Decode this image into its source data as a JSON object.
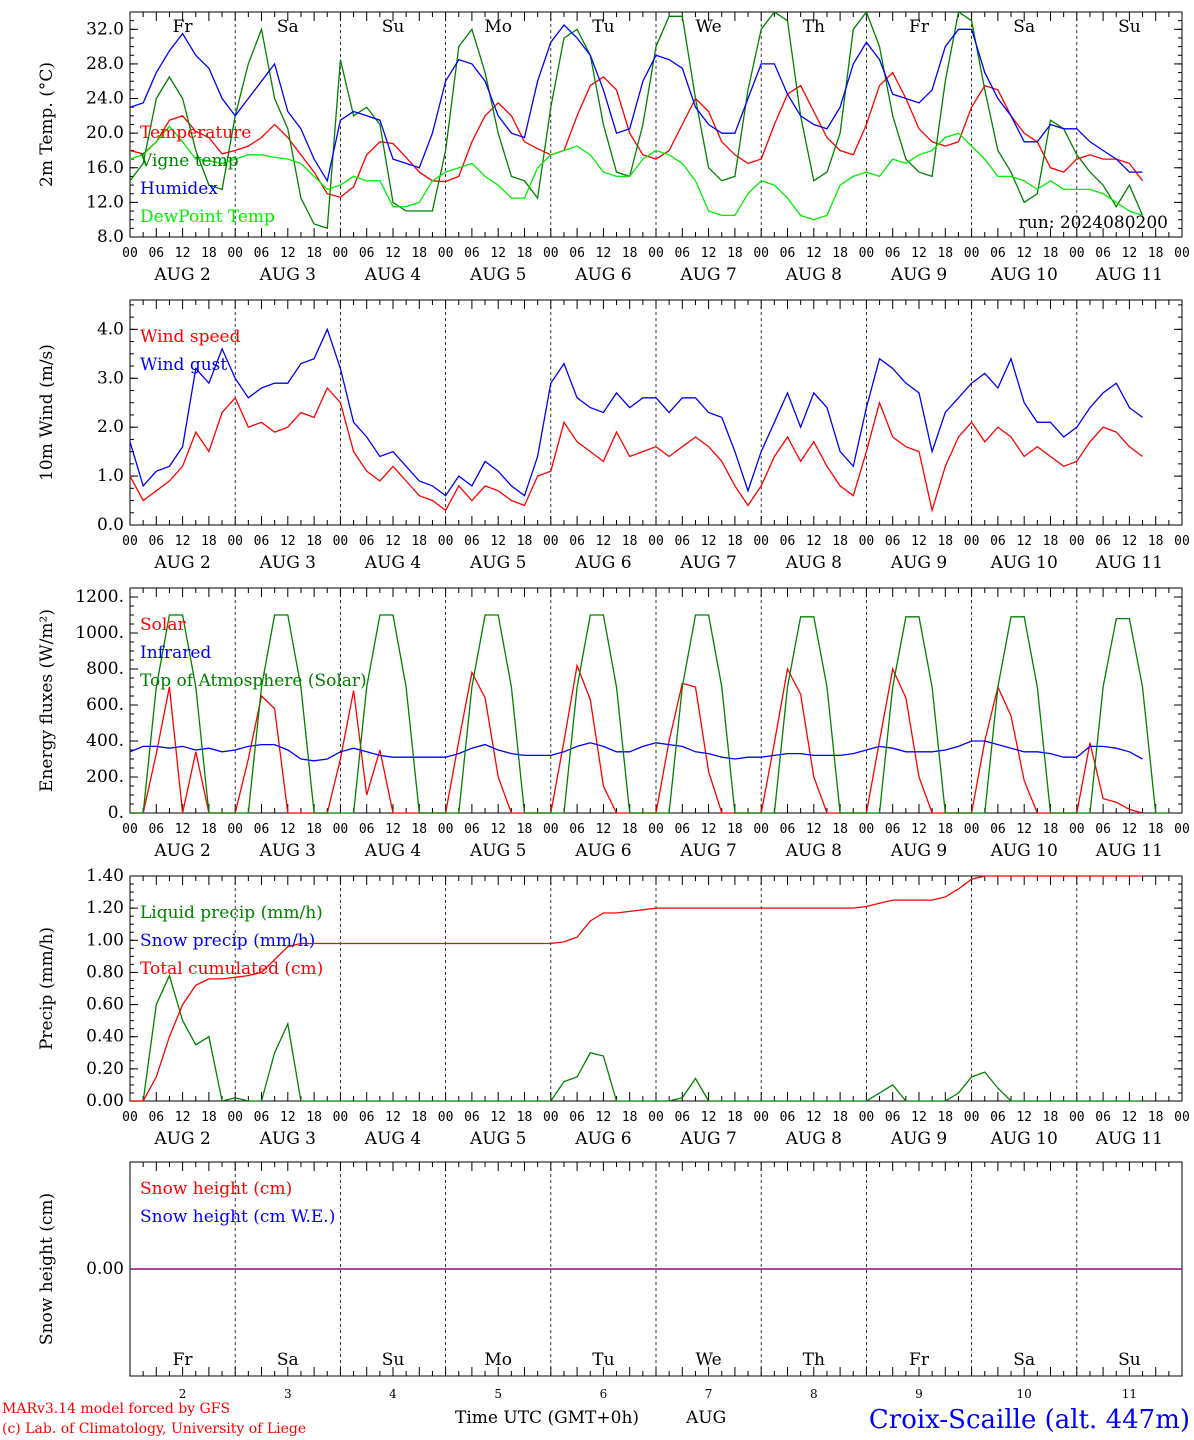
{
  "run_label": "run: 2024080200",
  "footer": {
    "credit_line1": "MARv3.14 model forced by GFS",
    "credit_line2": "(c) Lab. of Climatology, University of Liege",
    "xaxis_title": "Time UTC (GMT+0h)",
    "month_label": "AUG",
    "station": "Croix-Scaille (alt. 447m)"
  },
  "colors": {
    "red": "#ff0000",
    "green": "#008000",
    "blue": "#0000ff",
    "lightgreen": "#00ee00",
    "purple": "#800080",
    "weekend": "#ff0000"
  },
  "days": [
    {
      "abbr": "Fr",
      "date": "AUG  2",
      "num": "2",
      "weekend": false
    },
    {
      "abbr": "Sa",
      "date": "AUG  3",
      "num": "3",
      "weekend": true
    },
    {
      "abbr": "Su",
      "date": "AUG  4",
      "num": "4",
      "weekend": true
    },
    {
      "abbr": "Mo",
      "date": "AUG  5",
      "num": "5",
      "weekend": false
    },
    {
      "abbr": "Tu",
      "date": "AUG  6",
      "num": "6",
      "weekend": false
    },
    {
      "abbr": "We",
      "date": "AUG  7",
      "num": "7",
      "weekend": false
    },
    {
      "abbr": "Th",
      "date": "AUG  8",
      "num": "8",
      "weekend": false
    },
    {
      "abbr": "Fr",
      "date": "AUG  9",
      "num": "9",
      "weekend": false
    },
    {
      "abbr": "Sa",
      "date": "AUG 10",
      "num": "10",
      "weekend": true
    },
    {
      "abbr": "Su",
      "date": "AUG 11",
      "num": "11",
      "weekend": true
    }
  ],
  "hour_ticks": [
    "00",
    "06",
    "12",
    "18"
  ],
  "chart_data": [
    {
      "type": "line",
      "ylabel": "2m Temp. (°C)",
      "ylim": [
        8,
        34
      ],
      "yticks": [
        8,
        12,
        16,
        20,
        24,
        28,
        32
      ],
      "ytick_labels": [
        "8.0",
        "12.0",
        "16.0",
        "20.0",
        "24.0",
        "28.0",
        "32.0"
      ],
      "x_hours_step": 3,
      "series": [
        {
          "name": "Temperature",
          "color": "#ff0000",
          "values": [
            18,
            17.6,
            19,
            21.5,
            22,
            20.2,
            19.5,
            17.6,
            18,
            18.5,
            19.5,
            21,
            19.5,
            17.5,
            15.5,
            13,
            12.6,
            13.8,
            17.5,
            19,
            18.8,
            17.2,
            15.5,
            14.5,
            14.4,
            15,
            19,
            22,
            23.5,
            22,
            19,
            18.2,
            17.5,
            18,
            22,
            25.5,
            26.5,
            25,
            20,
            17.5,
            17,
            18,
            21,
            24,
            22.5,
            19,
            17.5,
            16.5,
            17,
            21,
            24.5,
            25.5,
            22.5,
            19.5,
            18,
            17.5,
            21,
            25.5,
            27,
            24,
            20.5,
            19,
            18.5,
            19,
            23,
            25.5,
            25,
            22,
            20,
            19,
            16,
            15.5,
            17,
            17.5,
            17,
            17,
            16.5,
            14.5
          ]
        },
        {
          "name": "Vigne temp",
          "color": "#008000",
          "values": [
            14.5,
            16.5,
            24,
            26.5,
            24,
            18,
            14,
            13.5,
            22,
            28,
            32,
            24,
            20.5,
            12.5,
            9.5,
            9,
            28.5,
            22,
            23,
            21,
            12,
            11,
            11,
            11,
            18,
            30,
            32,
            27,
            20,
            15,
            14.5,
            12.5,
            23,
            31,
            32,
            29,
            21,
            15.5,
            15,
            21,
            30,
            33.5,
            33.5,
            24,
            16,
            14.5,
            15,
            25,
            32,
            34,
            33,
            22,
            14.5,
            15.5,
            20,
            32,
            34,
            30,
            22,
            17,
            15.5,
            15,
            26,
            34,
            33,
            25,
            18,
            15.5,
            12,
            13,
            21.5,
            20.5,
            17.5,
            15.5,
            14,
            11.5,
            14,
            10.5
          ]
        },
        {
          "name": "Humidex",
          "color": "#0000ff",
          "values": [
            23,
            23.5,
            27,
            29.5,
            31.5,
            29,
            27.5,
            24,
            22,
            24,
            26,
            28,
            22.5,
            20.5,
            17,
            14.5,
            21.5,
            22.5,
            22,
            21.5,
            17,
            16.5,
            16,
            20,
            26,
            28.5,
            28,
            26,
            22,
            20,
            19.5,
            26,
            30.5,
            32.5,
            31,
            29,
            25,
            20,
            20.5,
            26,
            29,
            28.5,
            27.5,
            23,
            21,
            20,
            20,
            24,
            28,
            28,
            24.5,
            22,
            21,
            20.5,
            23,
            28,
            30.5,
            28.5,
            24.5,
            24,
            23.5,
            25,
            30,
            32,
            32,
            27,
            24,
            22,
            19,
            19,
            21,
            20.5,
            20.5,
            19,
            18,
            17,
            15.5,
            15.5
          ]
        },
        {
          "name": "DewPoint Temp",
          "color": "#00ee00",
          "values": [
            17,
            17.5,
            19,
            20.8,
            19,
            17,
            16.8,
            16.5,
            17,
            17.5,
            17.5,
            17.2,
            17,
            16.5,
            15,
            13.5,
            14,
            15,
            14.5,
            14.5,
            11.5,
            11.5,
            12,
            14.5,
            15.5,
            16,
            16.5,
            15,
            14,
            12.5,
            12.5,
            16,
            17.5,
            18,
            18.5,
            17.5,
            15.5,
            15,
            15,
            17,
            18,
            17.5,
            16.5,
            14.5,
            11,
            10.5,
            10.5,
            13,
            14.5,
            14,
            12.5,
            10.5,
            10,
            10.5,
            14,
            15,
            15.5,
            15,
            17,
            16.5,
            17.5,
            18,
            19.5,
            20,
            18.5,
            17,
            15,
            15,
            14.5,
            13.5,
            14.5,
            13.5,
            13.5,
            13.5,
            13,
            12,
            11,
            10.5
          ]
        }
      ]
    },
    {
      "type": "line",
      "ylabel": "10m Wind (m/s)",
      "ylim": [
        0,
        4.6
      ],
      "yticks": [
        0,
        1,
        2,
        3,
        4
      ],
      "ytick_labels": [
        "0.0",
        "1.0",
        "2.0",
        "3.0",
        "4.0"
      ],
      "x_hours_step": 3,
      "series": [
        {
          "name": "Wind speed",
          "color": "#ff0000",
          "values": [
            1,
            0.5,
            0.7,
            0.9,
            1.2,
            1.9,
            1.5,
            2.3,
            2.6,
            2,
            2.1,
            1.9,
            2,
            2.3,
            2.2,
            2.8,
            2.5,
            1.5,
            1.1,
            0.9,
            1.2,
            0.9,
            0.6,
            0.5,
            0.3,
            0.8,
            0.5,
            0.8,
            0.7,
            0.5,
            0.4,
            1,
            1.1,
            2.1,
            1.7,
            1.5,
            1.3,
            1.9,
            1.4,
            1.5,
            1.6,
            1.4,
            1.6,
            1.8,
            1.6,
            1.3,
            0.8,
            0.4,
            0.8,
            1.4,
            1.8,
            1.3,
            1.7,
            1.2,
            0.8,
            0.6,
            1.5,
            2.5,
            1.8,
            1.6,
            1.5,
            0.3,
            1.2,
            1.8,
            2.1,
            1.7,
            2,
            1.8,
            1.4,
            1.6,
            1.4,
            1.2,
            1.3,
            1.7,
            2,
            1.9,
            1.6,
            1.4
          ]
        },
        {
          "name": "Wind gust",
          "color": "#0000ff",
          "values": [
            1.7,
            0.8,
            1.1,
            1.2,
            1.6,
            3.2,
            2.9,
            3.6,
            3,
            2.6,
            2.8,
            2.9,
            2.9,
            3.3,
            3.4,
            4,
            3.2,
            2.1,
            1.8,
            1.4,
            1.5,
            1.2,
            0.9,
            0.8,
            0.6,
            1,
            0.8,
            1.3,
            1.1,
            0.8,
            0.6,
            1.4,
            2.9,
            3.3,
            2.6,
            2.4,
            2.3,
            2.7,
            2.4,
            2.6,
            2.6,
            2.3,
            2.6,
            2.6,
            2.3,
            2.2,
            1.5,
            0.7,
            1.5,
            2.1,
            2.7,
            2,
            2.7,
            2.4,
            1.5,
            1.2,
            2.4,
            3.4,
            3.2,
            2.9,
            2.7,
            1.5,
            2.3,
            2.6,
            2.9,
            3.1,
            2.8,
            3.4,
            2.5,
            2.1,
            2.1,
            1.8,
            2,
            2.4,
            2.7,
            2.9,
            2.4,
            2.2
          ]
        }
      ]
    },
    {
      "type": "line",
      "ylabel": "Energy fluxes (W/m²)",
      "ylim": [
        0,
        1250
      ],
      "yticks": [
        0,
        200,
        400,
        600,
        800,
        1000,
        1200
      ],
      "ytick_labels": [
        "0.",
        "200.",
        "400.",
        "600.",
        "800.",
        "1000.",
        "1200."
      ],
      "x_hours_step": 3,
      "series": [
        {
          "name": "Solar",
          "color": "#ff0000",
          "values": [
            0,
            0,
            330,
            700,
            0,
            340,
            0,
            0,
            0,
            300,
            650,
            580,
            0,
            0,
            0,
            0,
            300,
            680,
            100,
            350,
            0,
            0,
            0,
            0,
            0,
            400,
            780,
            640,
            200,
            0,
            0,
            0,
            0,
            400,
            820,
            630,
            150,
            0,
            0,
            0,
            0,
            400,
            720,
            700,
            230,
            0,
            0,
            0,
            0,
            390,
            800,
            660,
            200,
            0,
            0,
            0,
            0,
            400,
            800,
            640,
            200,
            0,
            0,
            0,
            0,
            400,
            700,
            540,
            180,
            0,
            0,
            0,
            0,
            390,
            80,
            60,
            20,
            0
          ]
        },
        {
          "name": "Infrared",
          "color": "#0000ff",
          "values": [
            340,
            370,
            370,
            360,
            370,
            350,
            360,
            340,
            350,
            370,
            380,
            380,
            350,
            300,
            290,
            300,
            340,
            360,
            340,
            320,
            310,
            310,
            310,
            310,
            310,
            330,
            360,
            380,
            350,
            330,
            320,
            320,
            320,
            340,
            370,
            390,
            370,
            340,
            340,
            370,
            390,
            380,
            370,
            340,
            330,
            310,
            300,
            310,
            310,
            320,
            330,
            330,
            320,
            320,
            320,
            330,
            350,
            370,
            360,
            340,
            340,
            340,
            350,
            370,
            400,
            400,
            380,
            360,
            340,
            340,
            330,
            310,
            310,
            370,
            370,
            360,
            340,
            300
          ]
        },
        {
          "name": "Top of Atmosphere (Solar)",
          "color": "#008000",
          "values": [
            0,
            0,
            700,
            1100,
            1100,
            700,
            0,
            0,
            0,
            0,
            700,
            1100,
            1100,
            700,
            0,
            0,
            0,
            0,
            700,
            1100,
            1100,
            700,
            0,
            0,
            0,
            0,
            700,
            1100,
            1100,
            700,
            0,
            0,
            0,
            0,
            700,
            1100,
            1100,
            700,
            0,
            0,
            0,
            0,
            700,
            1100,
            1100,
            700,
            0,
            0,
            0,
            0,
            700,
            1090,
            1090,
            700,
            0,
            0,
            0,
            0,
            700,
            1090,
            1090,
            700,
            0,
            0,
            0,
            0,
            700,
            1090,
            1090,
            700,
            0,
            0,
            0,
            0,
            700,
            1080,
            1080,
            700,
            0,
            0
          ]
        }
      ]
    },
    {
      "type": "line",
      "ylabel": "Precip (mm/h)",
      "ylim": [
        0,
        1.4
      ],
      "yticks": [
        0,
        0.2,
        0.4,
        0.6,
        0.8,
        1,
        1.2,
        1.4
      ],
      "ytick_labels": [
        "0.00",
        "0.20",
        "0.40",
        "0.60",
        "0.80",
        "1.00",
        "1.20",
        "1.40"
      ],
      "x_hours_step": 3,
      "series": [
        {
          "name": "Liquid precip (mm/h)",
          "color": "#008000",
          "values": [
            0,
            0,
            0.6,
            0.78,
            0.5,
            0.35,
            0.4,
            0,
            0.02,
            0,
            0,
            0.3,
            0.48,
            0,
            0,
            0,
            0,
            0,
            0,
            0,
            0,
            0,
            0,
            0,
            0,
            0,
            0,
            0,
            0,
            0,
            0,
            0,
            0,
            0.12,
            0.15,
            0.3,
            0.28,
            0,
            0,
            0,
            0,
            0,
            0.02,
            0.14,
            0,
            0,
            0,
            0,
            0,
            0,
            0,
            0,
            0,
            0,
            0,
            0,
            0,
            0.05,
            0.1,
            0,
            0,
            0,
            0,
            0.05,
            0.15,
            0.18,
            0.08,
            0,
            0,
            0,
            0,
            0,
            0,
            0,
            0,
            0,
            0,
            0
          ]
        },
        {
          "name": "Snow precip (mm/h)",
          "color": "#0000ff",
          "values": []
        },
        {
          "name": "Total cumulated (cm)",
          "color": "#ff0000",
          "values": [
            0,
            0,
            0.15,
            0.4,
            0.6,
            0.72,
            0.76,
            0.76,
            0.77,
            0.78,
            0.8,
            0.88,
            0.96,
            0.98,
            0.98,
            0.98,
            0.98,
            0.98,
            0.98,
            0.98,
            0.98,
            0.98,
            0.98,
            0.98,
            0.98,
            0.98,
            0.98,
            0.98,
            0.98,
            0.98,
            0.98,
            0.98,
            0.98,
            0.99,
            1.02,
            1.12,
            1.17,
            1.17,
            1.18,
            1.19,
            1.2,
            1.2,
            1.2,
            1.2,
            1.2,
            1.2,
            1.2,
            1.2,
            1.2,
            1.2,
            1.2,
            1.2,
            1.2,
            1.2,
            1.2,
            1.2,
            1.21,
            1.23,
            1.25,
            1.25,
            1.25,
            1.25,
            1.27,
            1.32,
            1.38,
            1.4,
            1.4,
            1.4,
            1.4,
            1.4,
            1.4,
            1.4,
            1.4,
            1.4,
            1.4,
            1.4,
            1.4,
            1.4
          ]
        }
      ]
    },
    {
      "type": "line",
      "ylabel": "Snow height (cm)",
      "ylim": [
        -1,
        1
      ],
      "yticks": [
        0
      ],
      "ytick_labels": [
        "0.00"
      ],
      "x_hours_step": 3,
      "series": [
        {
          "name": "Snow height (cm)",
          "color": "#ff0000",
          "values": [
            0,
            0
          ]
        },
        {
          "name": "Snow height (cm W.E.)",
          "color": "#0000ff",
          "values": [
            0,
            0
          ]
        }
      ]
    }
  ]
}
